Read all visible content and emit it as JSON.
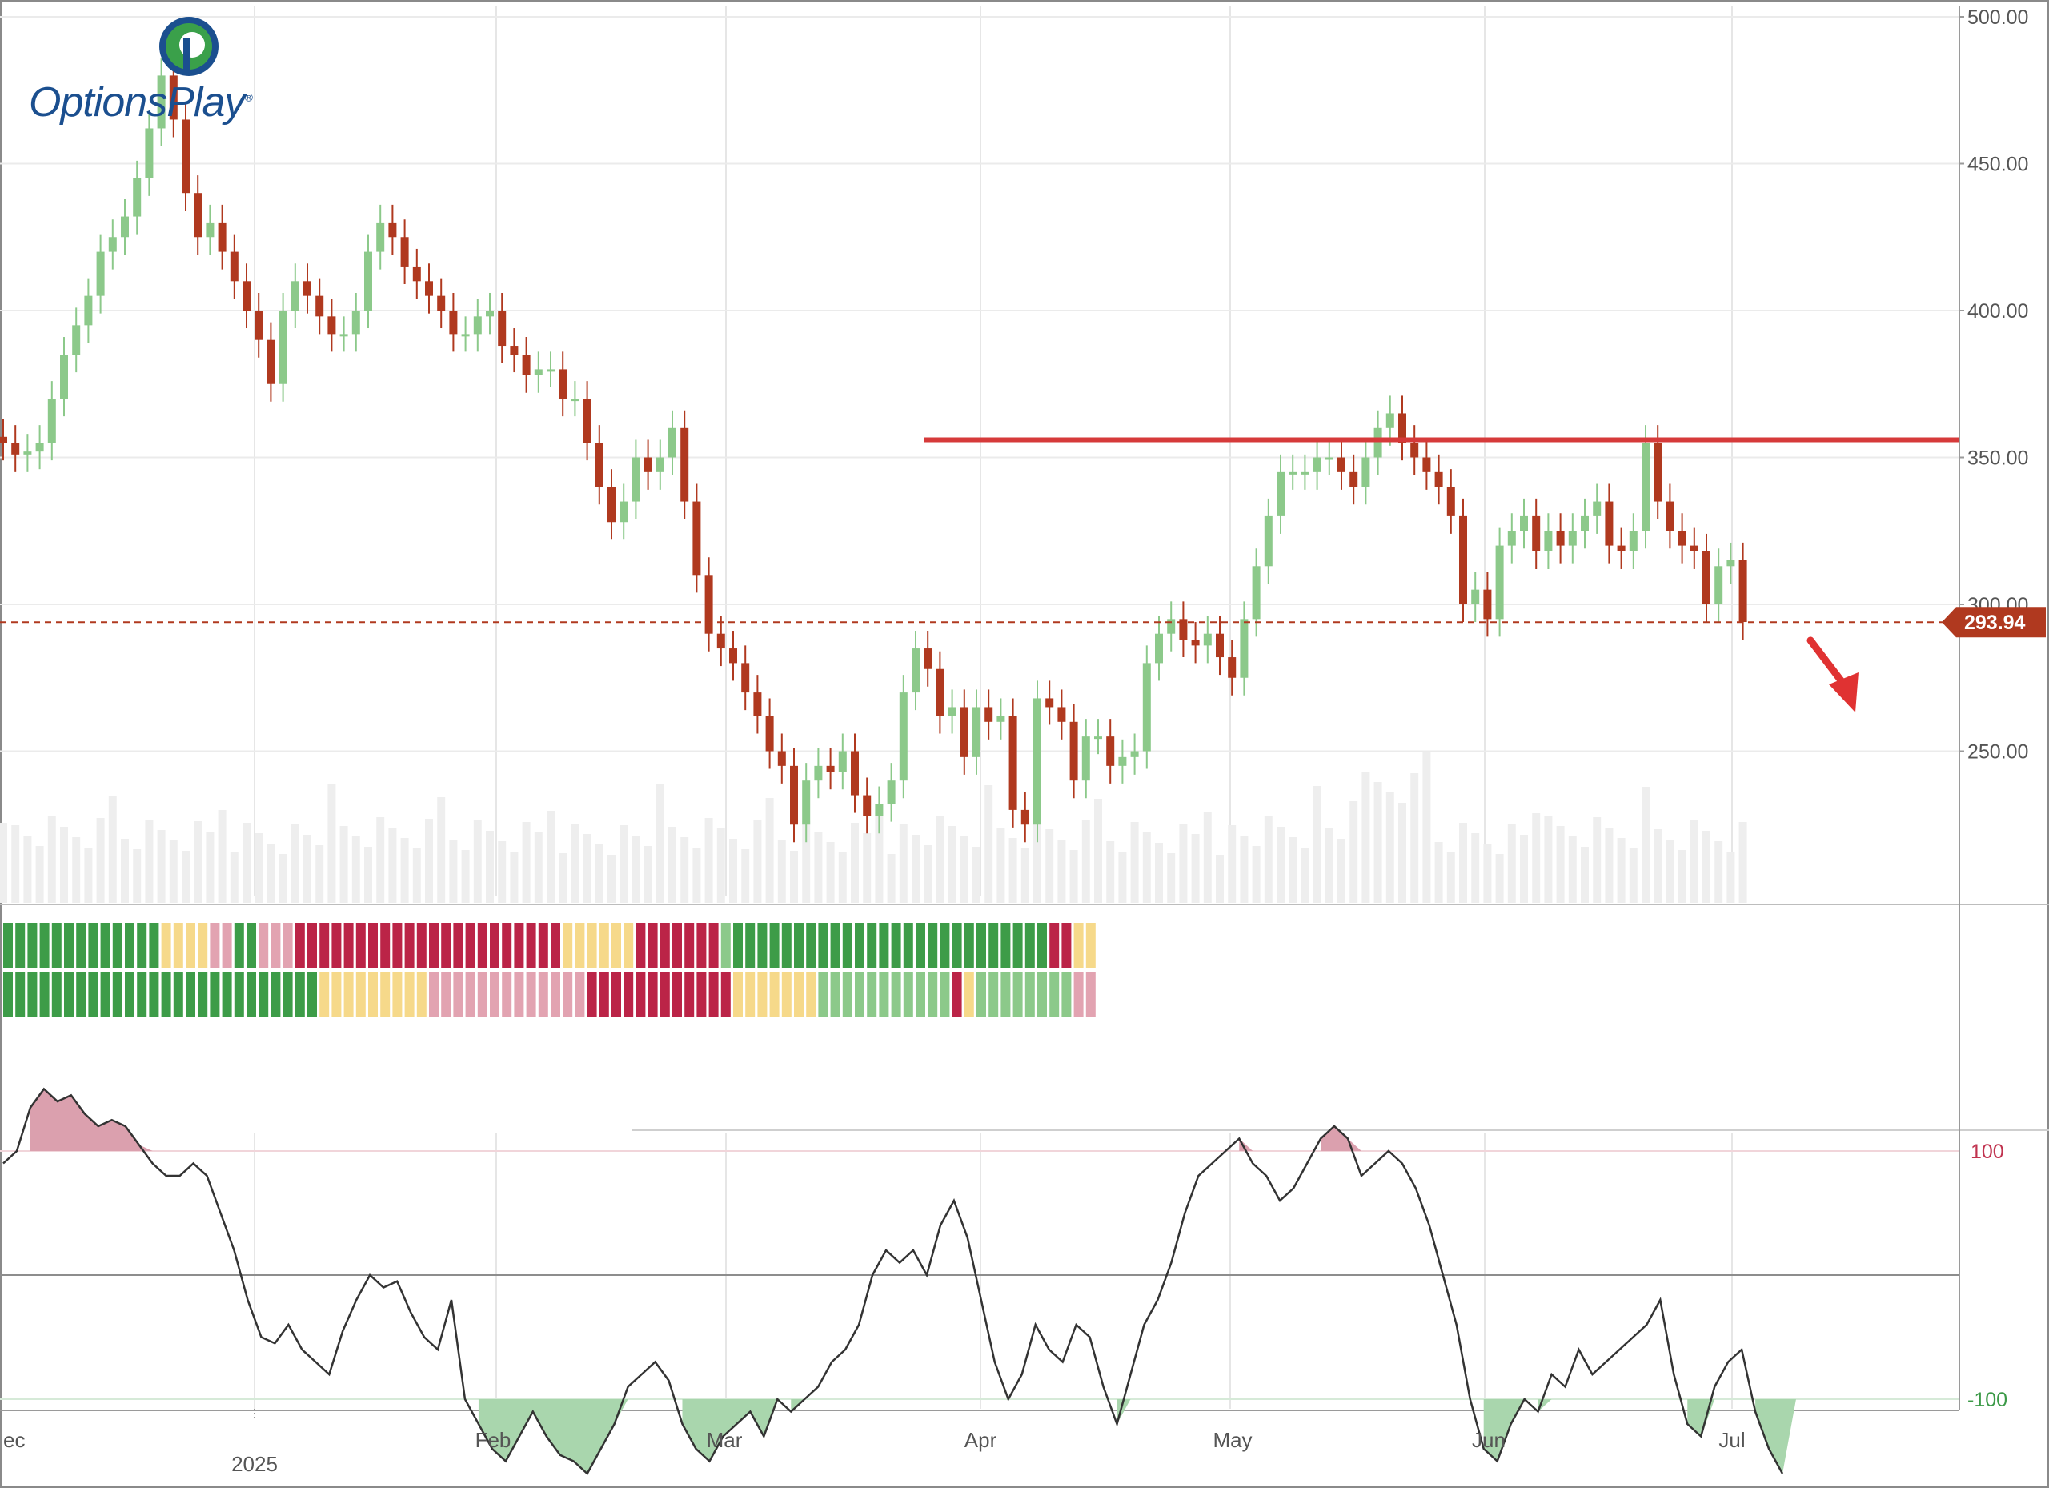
{
  "brand": {
    "name_a": "Options",
    "name_b": "Play",
    "reg_mark": "®",
    "colors": {
      "blue": "#1b4f8f",
      "green": "#3aa04a"
    }
  },
  "colors": {
    "bull": "#8cc98a",
    "bear": "#b0391f",
    "resistance": "#d63a3a",
    "price_tag": "#b0391f",
    "volume": "#eeeeee",
    "cci_line": "#333333",
    "cci_over": "#dba0ae",
    "cci_under": "#a9d6ad",
    "trend_strong_bull": "#3d9c48",
    "trend_bull": "#8cc98a",
    "trend_neutral": "#f6d98a",
    "trend_bear": "#e2a3b1",
    "trend_strong_bear": "#bb2447"
  },
  "price_axis": {
    "ticks": [
      "500.00",
      "450.00",
      "400.00",
      "350.00",
      "300.00",
      "250.00"
    ],
    "last_price_label": "293.94"
  },
  "cci_axis": {
    "ticks": [
      "100",
      "-100"
    ]
  },
  "time_axis": {
    "labels": [
      "ec",
      "Feb",
      "Mar",
      "Apr",
      "May",
      "Jun",
      "Jul"
    ],
    "year_label": "2025"
  },
  "chart_data": {
    "type": "candlestick",
    "title": "",
    "x_range": [
      "2024-12-01",
      "2025-07-31"
    ],
    "y_range": [
      200,
      505
    ],
    "last_price": 293.94,
    "resistance": {
      "value": 356,
      "from": "2025-03-24"
    },
    "annotation": "red-down-arrow",
    "candles_close": [
      355,
      351,
      352,
      355,
      370,
      385,
      395,
      405,
      420,
      425,
      432,
      445,
      462,
      480,
      465,
      440,
      425,
      430,
      420,
      410,
      400,
      390,
      375,
      400,
      410,
      405,
      398,
      392,
      392,
      400,
      420,
      430,
      425,
      415,
      410,
      405,
      400,
      392,
      392,
      398,
      400,
      388,
      385,
      378,
      380,
      380,
      370,
      370,
      355,
      340,
      328,
      335,
      350,
      345,
      350,
      360,
      335,
      310,
      290,
      285,
      280,
      270,
      262,
      250,
      245,
      225,
      240,
      245,
      243,
      250,
      235,
      228,
      232,
      240,
      270,
      285,
      278,
      262,
      265,
      248,
      265,
      260,
      262,
      230,
      225,
      268,
      265,
      260,
      240,
      255,
      255,
      245,
      248,
      250,
      280,
      290,
      295,
      288,
      286,
      290,
      282,
      275,
      295,
      313,
      330,
      345,
      345,
      345,
      350,
      350,
      345,
      340,
      350,
      360,
      365,
      355,
      350,
      345,
      340,
      330,
      300,
      305,
      295,
      320,
      325,
      330,
      318,
      325,
      320,
      325,
      330,
      335,
      320,
      318,
      325,
      355,
      335,
      325,
      320,
      318,
      300,
      313,
      315,
      294
    ],
    "indicators": {
      "trend_row_1": "upper color-coded trend strength strip",
      "trend_row_2": "lower color-coded trend strength strip"
    },
    "cci": {
      "overbought": 100,
      "oversold": -100,
      "values": [
        90,
        100,
        135,
        150,
        140,
        145,
        130,
        120,
        125,
        120,
        105,
        90,
        80,
        80,
        90,
        80,
        50,
        20,
        -20,
        -50,
        -55,
        -40,
        -60,
        -70,
        -80,
        -45,
        -20,
        0,
        -10,
        -5,
        -30,
        -50,
        -60,
        -20,
        -100,
        -120,
        -140,
        -150,
        -130,
        -110,
        -130,
        -145,
        -150,
        -160,
        -140,
        -120,
        -90,
        -80,
        -70,
        -85,
        -120,
        -140,
        -150,
        -130,
        -120,
        -110,
        -130,
        -100,
        -110,
        -100,
        -90,
        -70,
        -60,
        -40,
        0,
        20,
        10,
        20,
        0,
        40,
        60,
        30,
        -20,
        -70,
        -100,
        -80,
        -40,
        -60,
        -70,
        -40,
        -50,
        -90,
        -120,
        -80,
        -40,
        -20,
        10,
        50,
        80,
        90,
        100,
        110,
        90,
        80,
        60,
        70,
        90,
        110,
        120,
        110,
        80,
        90,
        100,
        90,
        70,
        40,
        0,
        -40,
        -100,
        -140,
        -150,
        -120,
        -100,
        -110,
        -80,
        -90,
        -60,
        -80,
        -70,
        -60,
        -50,
        -40,
        -20,
        -80,
        -120,
        -130,
        -90,
        -70,
        -60,
        -110,
        -140,
        -160
      ]
    }
  }
}
